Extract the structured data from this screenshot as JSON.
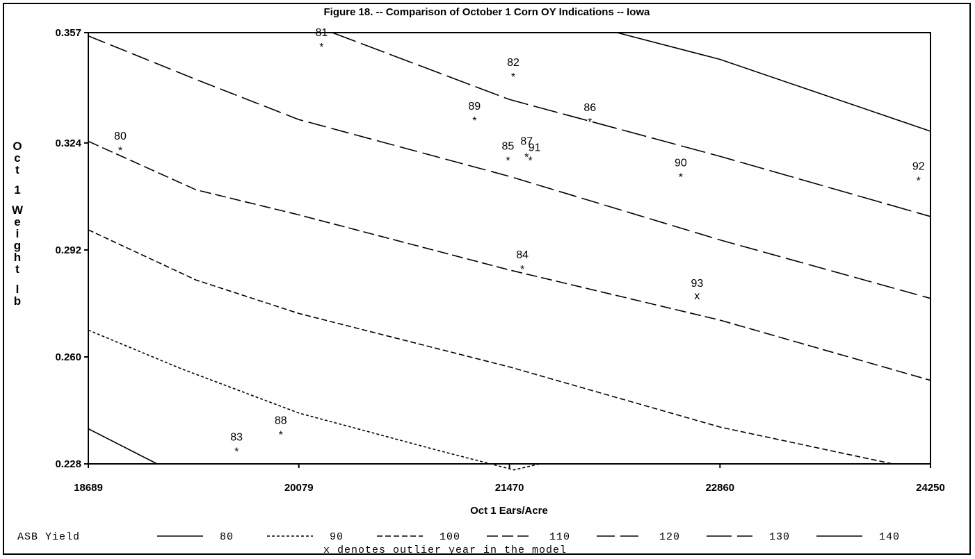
{
  "chart_data": {
    "type": "scatter",
    "title": "Figure 18. -- Comparison of October 1 Corn OY Indications -- Iowa",
    "xlabel": "Oct 1 Ears/Acre",
    "ylabel": "Oct 1 Weight lb",
    "xlim": [
      18689,
      24250
    ],
    "ylim": [
      0.228,
      0.357
    ],
    "x_ticks": [
      "18689",
      "20079",
      "21470",
      "22860",
      "24250"
    ],
    "y_ticks": [
      "0.357",
      "0.324",
      "0.292",
      "0.260",
      "0.228"
    ],
    "points": [
      {
        "label": "80",
        "x": 18900,
        "y": 0.3225,
        "marker": "*"
      },
      {
        "label": "81",
        "x": 20229,
        "y": 0.3535,
        "marker": "*"
      },
      {
        "label": "82",
        "x": 21495,
        "y": 0.3445,
        "marker": "*"
      },
      {
        "label": "83",
        "x": 19668,
        "y": 0.2325,
        "marker": "*"
      },
      {
        "label": "84",
        "x": 21555,
        "y": 0.287,
        "marker": "*"
      },
      {
        "label": "85",
        "x": 21460,
        "y": 0.3195,
        "marker": "*"
      },
      {
        "label": "86",
        "x": 22001,
        "y": 0.331,
        "marker": "*"
      },
      {
        "label": "87",
        "x": 21583,
        "y": 0.3205,
        "marker": "*"
      },
      {
        "label": "88",
        "x": 19960,
        "y": 0.2375,
        "marker": "*"
      },
      {
        "label": "89",
        "x": 21239,
        "y": 0.3315,
        "marker": "*"
      },
      {
        "label": "90",
        "x": 22601,
        "y": 0.3145,
        "marker": "*"
      },
      {
        "label": "91",
        "x": 21608,
        "y": 0.3195,
        "marker": "*"
      },
      {
        "label": "92",
        "x": 24171,
        "y": 0.3135,
        "marker": "*"
      },
      {
        "label": "93",
        "x": 22709,
        "y": 0.2785,
        "marker": "x"
      }
    ],
    "contour_series": [
      {
        "name": "80",
        "dash": "solid",
        "points": [
          [
            18689,
            0.2385
          ],
          [
            19143,
            0.228
          ]
        ]
      },
      {
        "name": "90",
        "dash": "4,3",
        "points": [
          [
            18689,
            0.268
          ],
          [
            19300,
            0.2565
          ],
          [
            20079,
            0.2432
          ],
          [
            21000,
            0.232
          ],
          [
            21500,
            0.2262
          ],
          [
            21670,
            0.228
          ]
        ]
      },
      {
        "name": "100",
        "dash": "8,4",
        "points": [
          [
            18689,
            0.298
          ],
          [
            19400,
            0.283
          ],
          [
            20079,
            0.273
          ],
          [
            21470,
            0.257
          ],
          [
            22860,
            0.239
          ],
          [
            24000,
            0.228
          ]
        ]
      },
      {
        "name": "110",
        "dash": "16,6",
        "points": [
          [
            18689,
            0.3245
          ],
          [
            19400,
            0.31
          ],
          [
            20079,
            0.3025
          ],
          [
            21470,
            0.286
          ],
          [
            22860,
            0.271
          ],
          [
            24250,
            0.253
          ]
        ]
      },
      {
        "name": "120",
        "dash": "26,8",
        "points": [
          [
            18689,
            0.356
          ],
          [
            19400,
            0.343
          ],
          [
            20079,
            0.331
          ],
          [
            21470,
            0.314
          ],
          [
            22860,
            0.295
          ],
          [
            24250,
            0.2775
          ]
        ]
      },
      {
        "name": "130",
        "dash": "36,8",
        "points": [
          [
            20300,
            0.357
          ],
          [
            21470,
            0.337
          ],
          [
            22860,
            0.32
          ],
          [
            24250,
            0.302
          ]
        ]
      },
      {
        "name": "140",
        "dash": "solid",
        "points": [
          [
            22180,
            0.357
          ],
          [
            22860,
            0.349
          ],
          [
            24250,
            0.3275
          ]
        ]
      }
    ],
    "legend": {
      "title": "ASB Yield",
      "placement": "bottom",
      "entries": [
        "80",
        "90",
        "100",
        "110",
        "120",
        "130",
        "140"
      ]
    },
    "footnote": "x denotes outlier year in the model"
  }
}
